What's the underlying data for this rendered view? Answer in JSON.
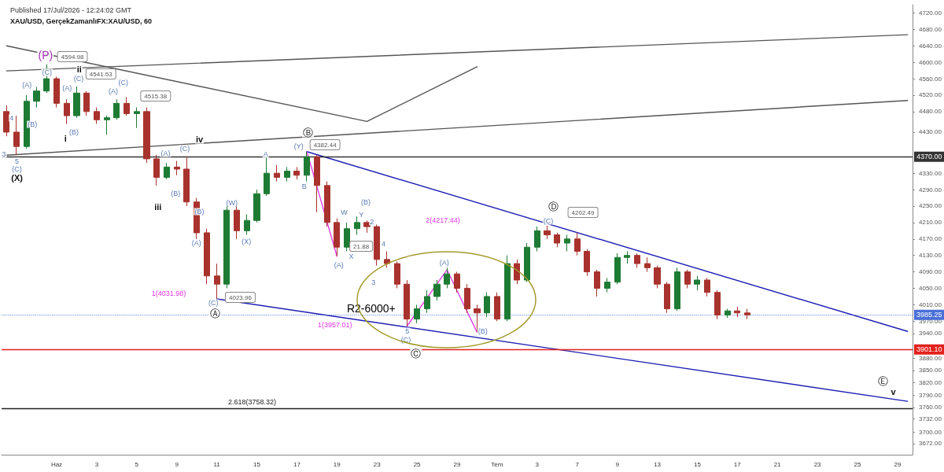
{
  "chart_data": {
    "type": "candlestick",
    "title": "XAU/USD, GerçekZamanlıFX:XAU/USD, 60",
    "subtitle": "Published 17/Jul/2026 - 12:24:02 GMT",
    "categories": [
      null,
      null,
      null,
      null,
      null,
      "Haz",
      null,
      null,
      null,
      "3",
      null,
      null,
      null,
      "5",
      null,
      null,
      null,
      "9",
      null,
      null,
      null,
      "11",
      null,
      null,
      null,
      "15",
      null,
      null,
      null,
      "17",
      null,
      null,
      null,
      "19",
      null,
      null,
      null,
      "23",
      null,
      null,
      null,
      "25",
      null,
      null,
      null,
      "29",
      null,
      null,
      null,
      "Tem",
      null,
      null,
      null,
      "3",
      null,
      null,
      null,
      "7",
      null,
      null,
      null,
      "9",
      null,
      null,
      null,
      "13",
      null,
      null,
      null,
      "15",
      null,
      null,
      null,
      "17",
      null,
      null,
      null,
      "21",
      null,
      null,
      null,
      "23",
      null,
      null,
      null,
      "25",
      null,
      null,
      null,
      "29",
      null
    ],
    "ylim": [
      3645,
      4740
    ],
    "yticks": [
      {
        "value": 4720,
        "label": "4720.00"
      },
      {
        "value": 4680,
        "label": "4680.00"
      },
      {
        "value": 4640,
        "label": "4640.00"
      },
      {
        "value": 4600,
        "label": "4600.00"
      },
      {
        "value": 4560,
        "label": "4560.00"
      },
      {
        "value": 4520,
        "label": "4520.00"
      },
      {
        "value": 4480,
        "label": "4480.00"
      },
      {
        "value": 4430,
        "label": "4430.00"
      },
      {
        "value": 4330,
        "label": "4330.00"
      },
      {
        "value": 4290,
        "label": "4290.00"
      },
      {
        "value": 4250,
        "label": "4250.00"
      },
      {
        "value": 4210,
        "label": "4210.00"
      },
      {
        "value": 4170,
        "label": "4170.00"
      },
      {
        "value": 4130,
        "label": "4130.00"
      },
      {
        "value": 4090,
        "label": "4090.00"
      },
      {
        "value": 4050,
        "label": "4050.00"
      },
      {
        "value": 4010,
        "label": "4010.00"
      },
      {
        "value": 3970,
        "label": "3970.00"
      },
      {
        "value": 3940,
        "label": "3940.00"
      },
      {
        "value": 3880,
        "label": "3880.00"
      },
      {
        "value": 3850,
        "label": "3850.00"
      },
      {
        "value": 3820,
        "label": "3820.00"
      },
      {
        "value": 3790,
        "label": "3790.00"
      },
      {
        "value": 3760,
        "label": "3760.00"
      },
      {
        "value": 3732,
        "label": "3732.00"
      },
      {
        "value": 3700,
        "label": "3700.00"
      },
      {
        "value": 3672,
        "label": "3672.00"
      }
    ],
    "series": [
      {
        "type": "candlestick",
        "ohlc": [
          [
            4480,
            4495,
            4420,
            4430
          ],
          [
            4430,
            4470,
            4374,
            4395
          ],
          [
            4395,
            4520,
            4390,
            4505
          ],
          [
            4505,
            4540,
            4490,
            4530
          ],
          [
            4530,
            4594.98,
            4525,
            4560
          ],
          [
            4560,
            4565,
            4490,
            4500
          ],
          [
            4500,
            4510,
            4450,
            4470
          ],
          [
            4470,
            4541.53,
            4465,
            4525
          ],
          [
            4525,
            4530,
            4470,
            4480
          ],
          [
            4480,
            4490,
            4450,
            4460
          ],
          [
            4460,
            4470,
            4424,
            4465
          ],
          [
            4465,
            4510,
            4460,
            4500
          ],
          [
            4500,
            4515.38,
            4470,
            4475
          ],
          [
            4475,
            4490,
            4440,
            4480
          ],
          [
            4480,
            4490,
            4355,
            4365
          ],
          [
            4365,
            4375,
            4300,
            4320
          ],
          [
            4320,
            4355,
            4315,
            4345
          ],
          [
            4345,
            4360,
            4325,
            4340
          ],
          [
            4340,
            4368,
            4250,
            4260
          ],
          [
            4260,
            4270,
            4170,
            4185
          ],
          [
            4185,
            4195,
            4060,
            4080
          ],
          [
            4080,
            4110,
            4023.96,
            4060
          ],
          [
            4060,
            4255,
            4050,
            4240
          ],
          [
            4240,
            4250,
            4170,
            4190
          ],
          [
            4190,
            4230,
            4180,
            4215
          ],
          [
            4215,
            4290,
            4210,
            4280
          ],
          [
            4280,
            4372,
            4275,
            4330
          ],
          [
            4330,
            4350,
            4310,
            4320
          ],
          [
            4320,
            4345,
            4310,
            4335
          ],
          [
            4335,
            4345,
            4315,
            4325
          ],
          [
            4325,
            4382.44,
            4310,
            4370
          ],
          [
            4370,
            4375,
            4235,
            4300
          ],
          [
            4300,
            4310,
            4200,
            4210
          ],
          [
            4210,
            4220,
            4128,
            4150
          ],
          [
            4150,
            4210,
            4140,
            4195
          ],
          [
            4195,
            4225,
            4180,
            4210
          ],
          [
            4210,
            4215,
            4185,
            4200
          ],
          [
            4200,
            4205,
            4105,
            4120
          ],
          [
            4120,
            4140,
            4100,
            4110
          ],
          [
            4110,
            4115,
            4050,
            4060
          ],
          [
            4060,
            4070,
            3958,
            3975
          ],
          [
            3975,
            4010,
            3965,
            4000
          ],
          [
            4000,
            4045,
            3990,
            4030
          ],
          [
            4030,
            4070,
            4020,
            4060
          ],
          [
            4060,
            4100,
            4050,
            4085
          ],
          [
            4085,
            4090,
            4040,
            4050
          ],
          [
            4050,
            4060,
            3990,
            4000
          ],
          [
            4000,
            4010,
            3943,
            3990
          ],
          [
            3990,
            4040,
            3980,
            4030
          ],
          [
            4030,
            4040,
            3970,
            3975
          ],
          [
            3975,
            4130,
            3970,
            4110
          ],
          [
            4110,
            4120,
            4060,
            4070
          ],
          [
            4070,
            4160,
            4065,
            4150
          ],
          [
            4150,
            4200,
            4140,
            4190
          ],
          [
            4190,
            4202.49,
            4170,
            4180
          ],
          [
            4180,
            4185,
            4150,
            4160
          ],
          [
            4160,
            4180,
            4140,
            4170
          ],
          [
            4170,
            4185,
            4130,
            4140
          ],
          [
            4140,
            4145,
            4080,
            4090
          ],
          [
            4090,
            4095,
            4030,
            4050
          ],
          [
            4050,
            4075,
            4040,
            4065
          ],
          [
            4065,
            4135,
            4060,
            4125
          ],
          [
            4125,
            4140,
            4110,
            4130
          ],
          [
            4130,
            4135,
            4100,
            4110
          ],
          [
            4110,
            4125,
            4090,
            4100
          ],
          [
            4100,
            4105,
            4050,
            4060
          ],
          [
            4060,
            4065,
            3990,
            4000
          ],
          [
            4000,
            4100,
            3995,
            4090
          ],
          [
            4090,
            4095,
            4050,
            4060
          ],
          [
            4060,
            4080,
            4045,
            4070
          ],
          [
            4070,
            4075,
            4030,
            4040
          ],
          [
            4040,
            4045,
            3975,
            3985
          ],
          [
            3985,
            4000,
            3978,
            3995
          ],
          [
            3995,
            4005,
            3980,
            3990
          ],
          [
            3990,
            4000,
            3975,
            3985.25
          ],
          null,
          null,
          null,
          null,
          null,
          null,
          null,
          null,
          null,
          null,
          null,
          null,
          null,
          null,
          null,
          null
        ],
        "colors": [
          "#a8322d",
          "#a8322d",
          "#1e7b34",
          "#1e7b34",
          "#1e7b34",
          "#a8322d",
          "#a8322d",
          "#1e7b34",
          "#a8322d",
          "#a8322d",
          "#1e7b34",
          "#1e7b34",
          "#a8322d",
          "#1e7b34",
          "#a8322d",
          "#a8322d",
          "#1e7b34",
          "#a8322d",
          "#a8322d",
          "#a8322d",
          "#a8322d",
          "#a8322d",
          "#1e7b34",
          "#a8322d",
          "#1e7b34",
          "#1e7b34",
          "#1e7b34",
          "#a8322d",
          "#1e7b34",
          "#a8322d",
          "#1e7b34",
          "#a8322d",
          "#a8322d",
          "#a8322d",
          "#1e7b34",
          "#1e7b34",
          "#a8322d",
          "#a8322d",
          "#a8322d",
          "#a8322d",
          "#a8322d",
          "#1e7b34",
          "#1e7b34",
          "#1e7b34",
          "#1e7b34",
          "#a8322d",
          "#a8322d",
          "#a8322d",
          "#1e7b34",
          "#a8322d",
          "#1e7b34",
          "#a8322d",
          "#1e7b34",
          "#1e7b34",
          "#a8322d",
          "#a8322d",
          "#1e7b34",
          "#a8322d",
          "#a8322d",
          "#a8322d",
          "#1e7b34",
          "#1e7b34",
          "#1e7b34",
          "#a8322d",
          "#a8322d",
          "#a8322d",
          "#a8322d",
          "#1e7b34",
          "#a8322d",
          "#1e7b34",
          "#a8322d",
          "#a8322d",
          "#1e7b34",
          "#a8322d",
          "#a8322d",
          null,
          null,
          null,
          null,
          null,
          null,
          null,
          null,
          null,
          null,
          null,
          null,
          null,
          null,
          null,
          null
        ]
      },
      {
        "type": "line",
        "color": "#555555",
        "values": [
          4640,
          null,
          null,
          null,
          null,
          null,
          null,
          null,
          null,
          null,
          null,
          null,
          null,
          null,
          null,
          null,
          null,
          null,
          null,
          null,
          null,
          null,
          null,
          null,
          null,
          null,
          null,
          null,
          null,
          null,
          null,
          null,
          null,
          null,
          null,
          null,
          4456,
          null,
          null,
          null,
          null,
          null,
          null,
          null,
          null,
          null,
          null,
          4589,
          null,
          null,
          null,
          null,
          null,
          null,
          null,
          null,
          null,
          null,
          null,
          null,
          null,
          null,
          null,
          null,
          null,
          null,
          null,
          null,
          null,
          null,
          null,
          null,
          null,
          null,
          null,
          null,
          null,
          null,
          null,
          null,
          null,
          null,
          null,
          null,
          null,
          null,
          null,
          null,
          null,
          null,
          null
        ]
      },
      {
        "type": "line",
        "color": "#555555",
        "values": [
          4579,
          null,
          null,
          null,
          null,
          null,
          null,
          null,
          null,
          null,
          null,
          null,
          null,
          null,
          null,
          null,
          null,
          null,
          null,
          null,
          null,
          null,
          null,
          null,
          null,
          null,
          null,
          null,
          null,
          null,
          null,
          null,
          null,
          null,
          null,
          null,
          null,
          null,
          null,
          null,
          null,
          null,
          null,
          null,
          null,
          null,
          null,
          null,
          null,
          null,
          null,
          null,
          null,
          null,
          null,
          null,
          null,
          null,
          null,
          null,
          null,
          null,
          null,
          null,
          null,
          null,
          null,
          null,
          null,
          null,
          null,
          null,
          null,
          null,
          null,
          null,
          null,
          null,
          null,
          null,
          null,
          null,
          null,
          null,
          null,
          null,
          null,
          null,
          null,
          null,
          4667
        ]
      },
      {
        "type": "line",
        "color": "#555555",
        "values": [
          4374,
          null,
          null,
          null,
          null,
          null,
          null,
          null,
          null,
          null,
          null,
          null,
          null,
          null,
          null,
          null,
          null,
          null,
          null,
          null,
          null,
          null,
          null,
          null,
          null,
          null,
          null,
          null,
          null,
          null,
          null,
          null,
          null,
          null,
          null,
          null,
          null,
          null,
          null,
          null,
          null,
          null,
          null,
          null,
          null,
          null,
          null,
          null,
          null,
          null,
          null,
          null,
          null,
          null,
          null,
          null,
          null,
          null,
          null,
          null,
          null,
          null,
          null,
          null,
          null,
          null,
          null,
          null,
          null,
          null,
          null,
          null,
          null,
          null,
          null,
          null,
          null,
          null,
          null,
          null,
          null,
          null,
          null,
          null,
          null,
          null,
          null,
          null,
          null,
          null,
          4507
        ]
      },
      {
        "type": "line",
        "color": "#1f1fb4",
        "values": [
          null,
          null,
          null,
          null,
          null,
          null,
          null,
          null,
          null,
          null,
          null,
          null,
          null,
          null,
          null,
          null,
          null,
          null,
          null,
          null,
          null,
          null,
          null,
          null,
          null,
          null,
          null,
          null,
          null,
          null,
          4382.44,
          null,
          null,
          null,
          null,
          null,
          null,
          null,
          null,
          null,
          null,
          null,
          null,
          null,
          null,
          null,
          null,
          null,
          null,
          null,
          null,
          null,
          null,
          null,
          null,
          null,
          null,
          null,
          null,
          null,
          null,
          null,
          null,
          null,
          null,
          null,
          null,
          null,
          null,
          null,
          null,
          null,
          null,
          null,
          null,
          null,
          null,
          null,
          null,
          null,
          null,
          null,
          null,
          null,
          null,
          null,
          null,
          null,
          null,
          null,
          3945
        ]
      },
      {
        "type": "line",
        "color": "#1f1fb4",
        "values": [
          null,
          null,
          null,
          null,
          null,
          null,
          null,
          null,
          null,
          null,
          null,
          null,
          null,
          null,
          null,
          null,
          null,
          null,
          null,
          null,
          null,
          4023.96,
          null,
          null,
          null,
          null,
          null,
          null,
          null,
          null,
          null,
          null,
          null,
          null,
          null,
          null,
          null,
          null,
          null,
          null,
          null,
          null,
          null,
          null,
          null,
          null,
          null,
          null,
          null,
          null,
          null,
          null,
          null,
          null,
          null,
          null,
          null,
          null,
          null,
          null,
          null,
          null,
          null,
          null,
          null,
          null,
          null,
          null,
          null,
          null,
          null,
          null,
          null,
          null,
          null,
          null,
          null,
          null,
          null,
          null,
          null,
          null,
          null,
          null,
          null,
          null,
          null,
          null,
          null,
          null,
          3775
        ]
      },
      {
        "type": "line",
        "color": "#e040e0",
        "values": [
          null,
          null,
          null,
          null,
          null,
          null,
          null,
          null,
          null,
          null,
          null,
          null,
          null,
          null,
          null,
          null,
          null,
          null,
          null,
          null,
          null,
          null,
          null,
          null,
          null,
          null,
          null,
          null,
          null,
          null,
          4382.44,
          null,
          null,
          4128,
          null,
          null,
          null,
          null,
          null,
          null,
          null,
          null,
          null,
          null,
          null,
          null,
          null,
          null,
          null,
          null,
          null,
          null,
          null,
          null,
          null,
          null,
          null,
          null,
          null,
          null,
          null,
          null,
          null,
          null,
          null,
          null,
          null,
          null,
          null,
          null,
          null,
          null,
          null,
          null,
          null,
          null,
          null,
          null,
          null,
          null,
          null,
          null,
          null,
          null,
          null,
          null,
          null,
          null,
          null,
          null,
          null
        ]
      },
      {
        "type": "line",
        "color": "#e040e0",
        "values": [
          null,
          null,
          null,
          null,
          null,
          null,
          null,
          null,
          null,
          null,
          null,
          null,
          null,
          null,
          null,
          null,
          null,
          null,
          null,
          null,
          null,
          null,
          null,
          null,
          null,
          null,
          null,
          null,
          null,
          null,
          null,
          null,
          null,
          null,
          null,
          null,
          null,
          null,
          null,
          null,
          3958,
          null,
          null,
          null,
          4095,
          null,
          null,
          3943,
          null,
          null,
          null,
          null,
          null,
          null,
          null,
          null,
          null,
          null,
          null,
          null,
          null,
          null,
          null,
          null,
          null,
          null,
          null,
          null,
          null,
          null,
          null,
          null,
          null,
          null,
          null,
          null,
          null,
          null,
          null,
          null,
          null,
          null,
          null,
          null,
          null,
          null,
          null,
          null,
          null,
          null,
          null
        ]
      }
    ],
    "ref_lines": [
      {
        "axis": "y",
        "value": 4370,
        "label": "4370.00",
        "color": "#333333",
        "line_style": "solid"
      },
      {
        "axis": "y",
        "value": 3985.25,
        "label": "3985.25",
        "color": "#4a6fd8",
        "line_style": "dotted"
      },
      {
        "axis": "y",
        "value": 3901.1,
        "label": "3901.10",
        "color": "#e3211c",
        "line_style": "solid"
      },
      {
        "axis": "y",
        "value": 3758.32,
        "label": "2.618(3758.32)",
        "color": "#222222",
        "line_style": "solid"
      }
    ],
    "annotations": [
      "(P)",
      "(C)",
      "4594.98",
      "3",
      "4",
      "5",
      "(C)",
      "(X)",
      "(A)",
      "(B)",
      "i",
      "(A)",
      "(B)",
      "ii",
      "(C)",
      "4541.53",
      "(A)",
      "(C)",
      "4515.38",
      "iii",
      "(A)",
      "(B)",
      "(C)",
      "iv",
      "(B)",
      "(A)",
      "(C)",
      "Ⓐ",
      "4023.96",
      "1(4031.98)",
      "(W)",
      "(X)",
      "A",
      "B",
      "Ⓑ",
      "(Y)",
      "4382.44",
      "(A)",
      "W",
      "X",
      "21.88",
      "Y",
      "(B)",
      "2",
      "3",
      "4",
      "R2-6000+",
      "1(3957.01)",
      "5",
      "(C)",
      "Ⓒ",
      "(A)",
      "(B)",
      "2(4217.44)",
      "Ⓓ",
      "(C)",
      "4202.49",
      "Ⓔ",
      "v"
    ]
  }
}
